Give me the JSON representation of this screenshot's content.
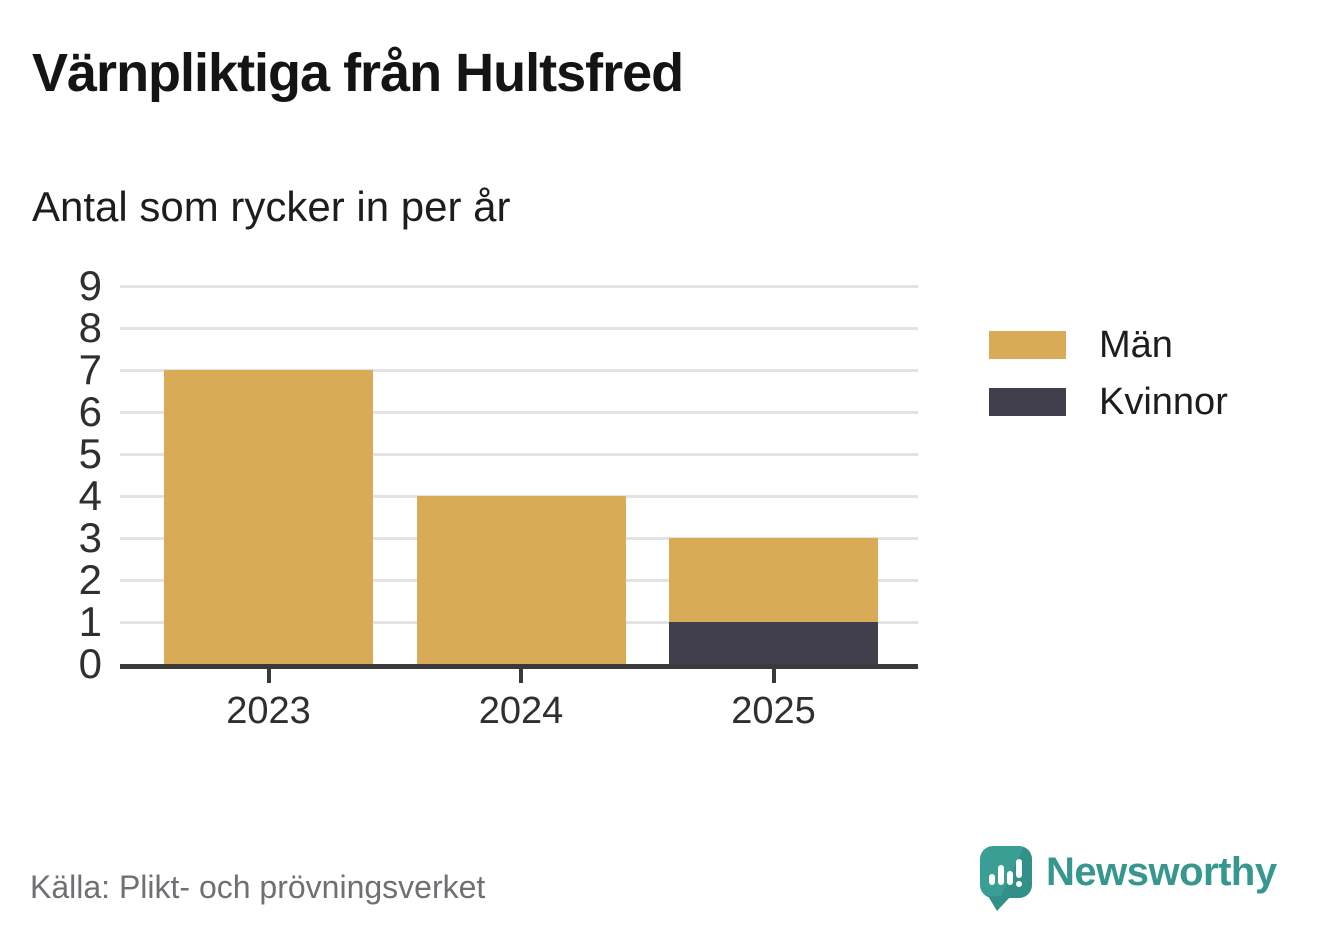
{
  "chart_data": {
    "type": "bar",
    "stacked": true,
    "title": "Värnpliktiga från Hultsfred",
    "subtitle": "Antal som rycker in per år",
    "categories": [
      "2023",
      "2024",
      "2025"
    ],
    "series": [
      {
        "name": "Män",
        "color": "#d9ab57",
        "values": [
          7,
          4,
          2
        ]
      },
      {
        "name": "Kvinnor",
        "color": "#423f4d",
        "values": [
          0,
          0,
          1
        ]
      }
    ],
    "totals": [
      7,
      4,
      3
    ],
    "xlabel": "",
    "ylabel": "",
    "ylim": [
      0,
      9
    ],
    "yticks": [
      0,
      1,
      2,
      3,
      4,
      5,
      6,
      7,
      8,
      9
    ],
    "grid": true,
    "legend_position": "right"
  },
  "footer": {
    "source": "Källa: Plikt- och prövningsverket",
    "brand": "Newsworthy"
  },
  "icons": {
    "brand": "newsworthy-speech-bubble-bar-chart-icon"
  },
  "colors": {
    "grid": "#e3e3e3",
    "axis": "#3a3a3a",
    "tick_label": "#2f2f2f",
    "source_text": "#6f6f74",
    "brand_teal": "#35978e",
    "background": "#ffffff"
  }
}
